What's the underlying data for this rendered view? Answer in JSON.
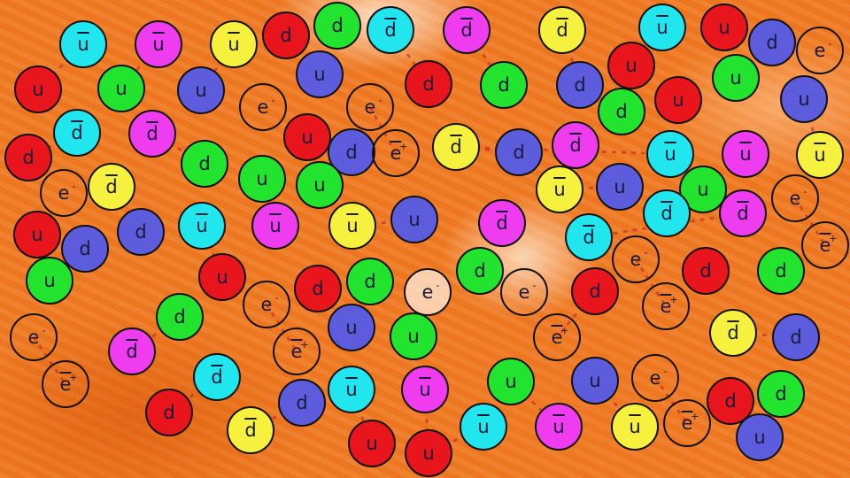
{
  "colors": {
    "red": "#e8161c",
    "green": "#22e42e",
    "cyan": "#22e6ee",
    "magenta": "#ee3cee",
    "yellow": "#f6f03e",
    "blue": "#5c5cdc",
    "background": "#ef7a22",
    "gluon": "#c8322a"
  },
  "particles": [
    {
      "label": "u",
      "anti": true,
      "color": "cyan"
    },
    {
      "label": "u",
      "anti": true,
      "color": "magenta"
    },
    {
      "label": "u",
      "anti": true,
      "color": "yellow"
    },
    {
      "label": "d",
      "anti": false,
      "color": "red"
    },
    {
      "label": "d",
      "anti": false,
      "color": "green"
    },
    {
      "label": "d",
      "anti": true,
      "color": "cyan"
    },
    {
      "label": "u",
      "anti": false,
      "color": "red"
    },
    {
      "label": "u",
      "anti": false,
      "color": "green"
    },
    {
      "label": "u",
      "anti": false,
      "color": "blue"
    },
    {
      "label": "u",
      "anti": false,
      "color": "blue"
    },
    {
      "label": "e",
      "charge": "-"
    },
    {
      "label": "e",
      "charge": "-"
    },
    {
      "label": "d",
      "anti": true,
      "color": "cyan"
    },
    {
      "label": "d",
      "anti": true,
      "color": "magenta"
    },
    {
      "label": "d",
      "anti": false,
      "color": "red"
    },
    {
      "label": "d",
      "anti": false,
      "color": "green"
    },
    {
      "label": "u",
      "anti": false,
      "color": "red"
    },
    {
      "label": "d",
      "anti": false,
      "color": "blue"
    },
    {
      "label": "e",
      "charge": "+",
      "anti": true
    },
    {
      "label": "u",
      "anti": false,
      "color": "green"
    },
    {
      "label": "u",
      "anti": false,
      "color": "green"
    },
    {
      "label": "e",
      "charge": "-"
    },
    {
      "label": "d",
      "anti": true,
      "color": "yellow"
    },
    {
      "label": "u",
      "anti": false,
      "color": "red"
    },
    {
      "label": "d",
      "anti": false,
      "color": "blue"
    },
    {
      "label": "d",
      "anti": false,
      "color": "blue"
    },
    {
      "label": "u",
      "anti": true,
      "color": "cyan"
    },
    {
      "label": "u",
      "anti": true,
      "color": "magenta"
    },
    {
      "label": "u",
      "anti": true,
      "color": "yellow"
    },
    {
      "label": "u",
      "anti": false,
      "color": "blue"
    },
    {
      "label": "d",
      "anti": true,
      "color": "magenta"
    },
    {
      "label": "d",
      "anti": true,
      "color": "yellow"
    },
    {
      "label": "u",
      "anti": true,
      "color": "cyan"
    },
    {
      "label": "u",
      "anti": false,
      "color": "red"
    },
    {
      "label": "d",
      "anti": false,
      "color": "blue"
    },
    {
      "label": "e",
      "charge": "-"
    },
    {
      "label": "d",
      "anti": false,
      "color": "red"
    },
    {
      "label": "d",
      "anti": false,
      "color": "green"
    },
    {
      "label": "d",
      "anti": false,
      "color": "blue"
    },
    {
      "label": "u",
      "anti": false,
      "color": "red"
    },
    {
      "label": "u",
      "anti": false,
      "color": "green"
    },
    {
      "label": "u",
      "anti": false,
      "color": "blue"
    },
    {
      "label": "d",
      "anti": false,
      "color": "green"
    },
    {
      "label": "u",
      "anti": false,
      "color": "red"
    },
    {
      "label": "d",
      "anti": true,
      "color": "yellow"
    },
    {
      "label": "d",
      "anti": false,
      "color": "blue"
    },
    {
      "label": "d",
      "anti": true,
      "color": "magenta"
    },
    {
      "label": "u",
      "anti": true,
      "color": "cyan"
    },
    {
      "label": "u",
      "anti": true,
      "color": "magenta"
    },
    {
      "label": "u",
      "anti": true,
      "color": "yellow"
    },
    {
      "label": "u",
      "anti": true,
      "color": "yellow"
    },
    {
      "label": "u",
      "anti": false,
      "color": "blue"
    },
    {
      "label": "u",
      "anti": false,
      "color": "green"
    },
    {
      "label": "e",
      "charge": "-"
    },
    {
      "label": "d",
      "anti": true,
      "color": "cyan"
    },
    {
      "label": "d",
      "anti": true,
      "color": "magenta"
    },
    {
      "label": "d",
      "anti": true,
      "color": "magenta"
    },
    {
      "label": "d",
      "anti": true,
      "color": "cyan"
    },
    {
      "label": "e",
      "charge": "+",
      "anti": true
    },
    {
      "label": "u",
      "anti": false,
      "color": "green"
    },
    {
      "label": "u",
      "anti": false,
      "color": "red"
    },
    {
      "label": "d",
      "anti": false,
      "color": "red"
    },
    {
      "label": "d",
      "anti": false,
      "color": "green"
    },
    {
      "label": "e",
      "charge": "-",
      "light": true
    },
    {
      "label": "e",
      "charge": "-"
    },
    {
      "label": "d",
      "anti": false,
      "color": "green"
    },
    {
      "label": "u",
      "anti": false,
      "color": "blue"
    },
    {
      "label": "u",
      "anti": false,
      "color": "green"
    },
    {
      "label": "e",
      "charge": "-"
    },
    {
      "label": "d",
      "anti": true,
      "color": "magenta"
    },
    {
      "label": "e",
      "charge": "+",
      "anti": true
    },
    {
      "label": "e",
      "charge": "+",
      "anti": true
    },
    {
      "label": "d",
      "anti": true,
      "color": "cyan"
    },
    {
      "label": "u",
      "anti": true,
      "color": "cyan"
    },
    {
      "label": "u",
      "anti": true,
      "color": "magenta"
    },
    {
      "label": "d",
      "anti": false,
      "color": "red"
    },
    {
      "label": "d",
      "anti": false,
      "color": "blue"
    },
    {
      "label": "d",
      "anti": true,
      "color": "yellow"
    },
    {
      "label": "u",
      "anti": false,
      "color": "red"
    },
    {
      "label": "u",
      "anti": false,
      "color": "red"
    },
    {
      "label": "d",
      "anti": false,
      "color": "green"
    },
    {
      "label": "e",
      "charge": "-"
    },
    {
      "label": "d",
      "anti": false,
      "color": "red"
    },
    {
      "label": "e",
      "charge": "-"
    },
    {
      "label": "d",
      "anti": false,
      "color": "red"
    },
    {
      "label": "d",
      "anti": false,
      "color": "green"
    },
    {
      "label": "e",
      "charge": "+",
      "anti": true
    },
    {
      "label": "e",
      "charge": "+",
      "anti": true
    },
    {
      "label": "d",
      "anti": true,
      "color": "yellow"
    },
    {
      "label": "d",
      "anti": false,
      "color": "blue"
    },
    {
      "label": "u",
      "anti": false,
      "color": "green"
    },
    {
      "label": "u",
      "anti": false,
      "color": "blue"
    },
    {
      "label": "e",
      "charge": "-"
    },
    {
      "label": "d",
      "anti": false,
      "color": "red"
    },
    {
      "label": "d",
      "anti": false,
      "color": "green"
    },
    {
      "label": "u",
      "anti": true,
      "color": "cyan"
    },
    {
      "label": "u",
      "anti": true,
      "color": "magenta"
    },
    {
      "label": "u",
      "anti": true,
      "color": "yellow"
    },
    {
      "label": "e",
      "charge": "+",
      "anti": true
    },
    {
      "label": "u",
      "anti": false,
      "color": "blue"
    }
  ]
}
